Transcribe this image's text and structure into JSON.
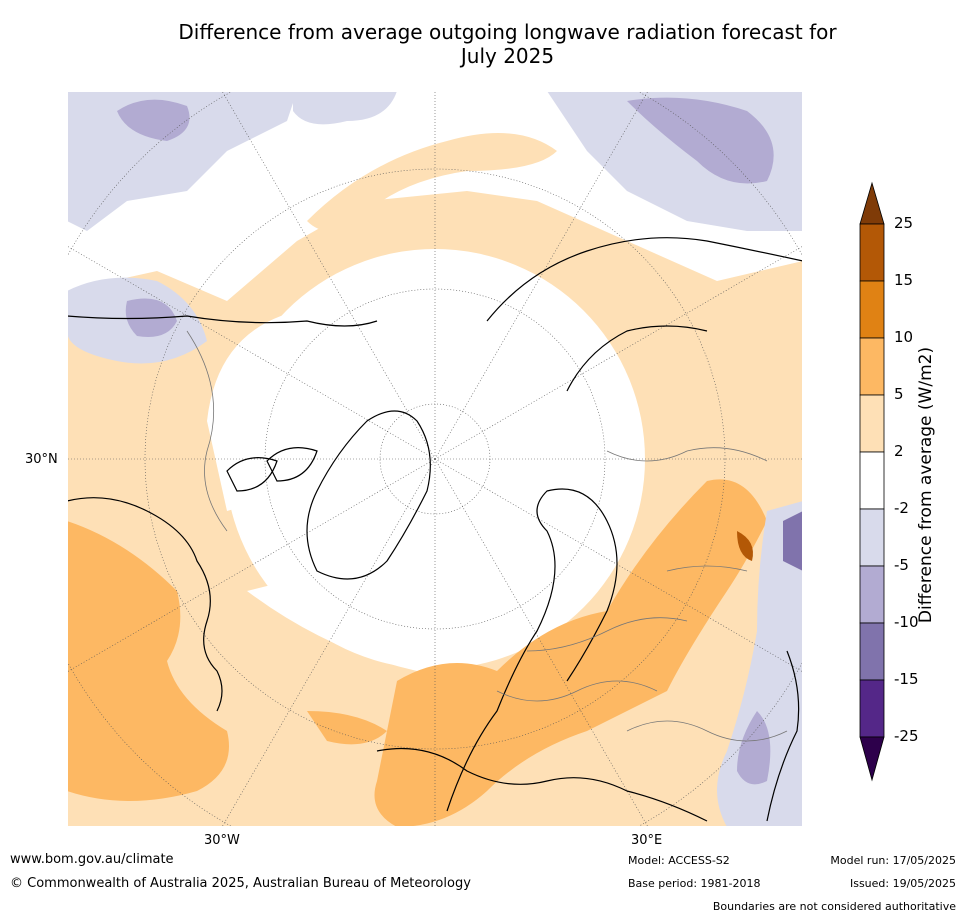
{
  "title_line1": "Difference from average outgoing longwave radiation forecast for",
  "title_line2": "July 2025",
  "map": {
    "projection": "north polar stereographic",
    "lat_label": "30°N",
    "lon_labels": {
      "west": "30°W",
      "east": "30°E"
    },
    "region": "Northern Hemisphere centred on North Pole with Europe, Greenland, North America and Russia"
  },
  "colorbar": {
    "title": "Difference from average (W/m2)",
    "tick_labels": [
      "25",
      "15",
      "10",
      "5",
      "2",
      "-2",
      "-5",
      "-10",
      "-15",
      "-25"
    ],
    "bins": [
      {
        "range": ">25",
        "color": "#7f3b08"
      },
      {
        "range": "15 to 25",
        "color": "#b35806"
      },
      {
        "range": "10 to 15",
        "color": "#e08214"
      },
      {
        "range": "5 to 10",
        "color": "#fdb863"
      },
      {
        "range": "2 to 5",
        "color": "#fee0b6"
      },
      {
        "range": "-2 to 2",
        "color": "#ffffff"
      },
      {
        "range": "-5 to -2",
        "color": "#d8daeb"
      },
      {
        "range": "-10 to -5",
        "color": "#b2abd2"
      },
      {
        "range": "-15 to -10",
        "color": "#8073ac"
      },
      {
        "range": "-25 to -15",
        "color": "#542788"
      },
      {
        "range": "<-25",
        "color": "#2d004b"
      }
    ]
  },
  "footer": {
    "website": "www.bom.gov.au/climate",
    "copyright": "© Commonwealth of Australia 2025, Australian Bureau of Meteorology",
    "model": "Model: ACCESS-S2",
    "base_period": "Base period: 1981-2018",
    "model_run": "Model run: 17/05/2025",
    "issued": "Issued: 19/05/2025",
    "disclaimer": "Boundaries are not considered authoritative"
  }
}
